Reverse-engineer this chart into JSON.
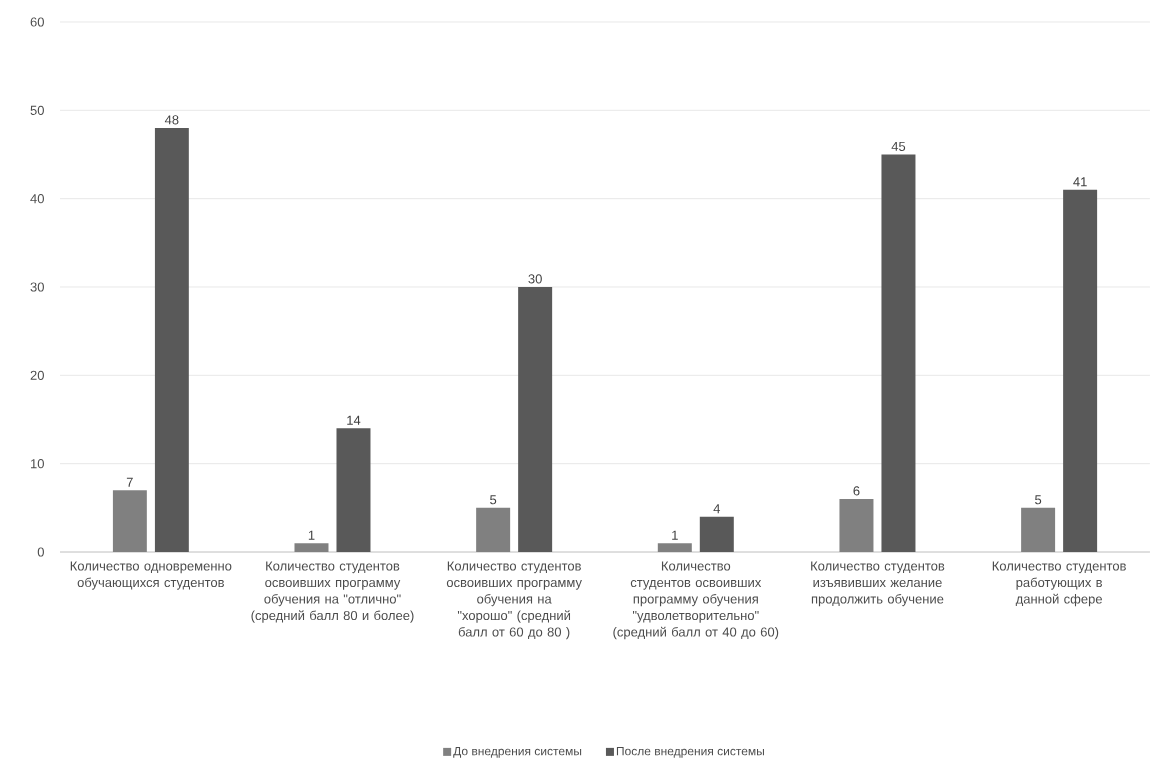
{
  "chart_data": {
    "type": "bar",
    "categories": [
      "Количество одновременно обучающихся студентов",
      "Количество студентов освоивших программу обучения на \"отлично\" (средний балл 80 и более)",
      "Количество студентов освоивших программу обучения на \"хорошо\" (средний балл от 60 до 80 )",
      "Количество студентов освоивших программу обучения \"удволетворительно\" (средний балл от 40 до 60)",
      "Количество студентов изъявивших желание продолжить обучение",
      "Количество студентов работующих в данной сфере"
    ],
    "series": [
      {
        "name": "До внедрения системы",
        "color": "#808080",
        "values": [
          7,
          1,
          5,
          1,
          6,
          5
        ]
      },
      {
        "name": "После внедрения системы",
        "color": "#595959",
        "values": [
          48,
          14,
          30,
          4,
          45,
          41
        ]
      }
    ],
    "ylim": [
      0,
      60
    ],
    "yticks": [
      0,
      10,
      20,
      30,
      40,
      50,
      60
    ],
    "grid": "y",
    "legend": "bottom",
    "data_labels": true
  }
}
